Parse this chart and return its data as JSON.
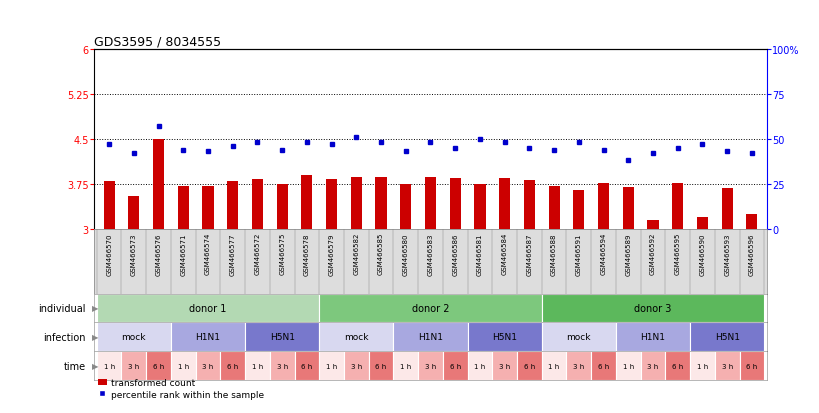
{
  "title": "GDS3595 / 8034555",
  "samples": [
    "GSM466570",
    "GSM466573",
    "GSM466576",
    "GSM466571",
    "GSM466574",
    "GSM466577",
    "GSM466572",
    "GSM466575",
    "GSM466578",
    "GSM466579",
    "GSM466582",
    "GSM466585",
    "GSM466580",
    "GSM466583",
    "GSM466586",
    "GSM466581",
    "GSM466584",
    "GSM466587",
    "GSM466588",
    "GSM466591",
    "GSM466594",
    "GSM466589",
    "GSM466592",
    "GSM466595",
    "GSM466590",
    "GSM466593",
    "GSM466596"
  ],
  "transformed_counts": [
    3.8,
    3.55,
    4.5,
    3.72,
    3.72,
    3.8,
    3.83,
    3.75,
    3.9,
    3.83,
    3.87,
    3.87,
    3.75,
    3.87,
    3.84,
    3.75,
    3.84,
    3.82,
    3.72,
    3.65,
    3.76,
    3.7,
    3.15,
    3.76,
    3.2,
    3.68,
    3.25
  ],
  "percentile_ranks": [
    47,
    42,
    57,
    44,
    43,
    46,
    48,
    44,
    48,
    47,
    51,
    48,
    43,
    48,
    45,
    50,
    48,
    45,
    44,
    48,
    44,
    38,
    42,
    45,
    47,
    43,
    42
  ],
  "bar_color": "#cc0000",
  "dot_color": "#0000cc",
  "ylim_left": [
    3.0,
    6.0
  ],
  "ylim_right": [
    0,
    100
  ],
  "yticks_left": [
    3.0,
    3.75,
    4.5,
    5.25,
    6.0
  ],
  "yticks_right": [
    0,
    25,
    50,
    75,
    100
  ],
  "ytick_labels_left": [
    "3",
    "3.75",
    "4.5",
    "5.25",
    "6"
  ],
  "ytick_labels_right": [
    "0",
    "25",
    "50",
    "75",
    "100%"
  ],
  "hlines": [
    3.75,
    4.5,
    5.25
  ],
  "donors": [
    {
      "label": "donor 1",
      "start": 0,
      "end": 9,
      "color": "#b3d9b3"
    },
    {
      "label": "donor 2",
      "start": 9,
      "end": 18,
      "color": "#7dc87d"
    },
    {
      "label": "donor 3",
      "start": 18,
      "end": 27,
      "color": "#5cb85c"
    }
  ],
  "infections": [
    {
      "label": "mock",
      "start": 0,
      "end": 3,
      "color": "#d8d8f0"
    },
    {
      "label": "H1N1",
      "start": 3,
      "end": 6,
      "color": "#a8a8e0"
    },
    {
      "label": "H5N1",
      "start": 6,
      "end": 9,
      "color": "#7878cc"
    },
    {
      "label": "mock",
      "start": 9,
      "end": 12,
      "color": "#d8d8f0"
    },
    {
      "label": "H1N1",
      "start": 12,
      "end": 15,
      "color": "#a8a8e0"
    },
    {
      "label": "H5N1",
      "start": 15,
      "end": 18,
      "color": "#7878cc"
    },
    {
      "label": "mock",
      "start": 18,
      "end": 21,
      "color": "#d8d8f0"
    },
    {
      "label": "H1N1",
      "start": 21,
      "end": 24,
      "color": "#a8a8e0"
    },
    {
      "label": "H5N1",
      "start": 24,
      "end": 27,
      "color": "#7878cc"
    }
  ],
  "times": [
    "1 h",
    "3 h",
    "6 h",
    "1 h",
    "3 h",
    "6 h",
    "1 h",
    "3 h",
    "6 h",
    "1 h",
    "3 h",
    "6 h",
    "1 h",
    "3 h",
    "6 h",
    "1 h",
    "3 h",
    "6 h",
    "1 h",
    "3 h",
    "6 h",
    "1 h",
    "3 h",
    "6 h",
    "1 h",
    "3 h",
    "6 h"
  ],
  "time_colors": [
    "#fce8e8",
    "#f5b0b0",
    "#e87878",
    "#fce8e8",
    "#f5b0b0",
    "#e87878",
    "#fce8e8",
    "#f5b0b0",
    "#e87878",
    "#fce8e8",
    "#f5b0b0",
    "#e87878",
    "#fce8e8",
    "#f5b0b0",
    "#e87878",
    "#fce8e8",
    "#f5b0b0",
    "#e87878",
    "#fce8e8",
    "#f5b0b0",
    "#e87878",
    "#fce8e8",
    "#f5b0b0",
    "#e87878",
    "#fce8e8",
    "#f5b0b0",
    "#e87878"
  ],
  "legend_bar_label": "transformed count",
  "legend_dot_label": "percentile rank within the sample",
  "row_label_individual": "individual",
  "row_label_infection": "infection",
  "row_label_time": "time",
  "background_color": "#ffffff",
  "sample_bg": "#dddddd",
  "title_fontsize": 9,
  "bar_width": 0.45,
  "dot_size": 3.5
}
